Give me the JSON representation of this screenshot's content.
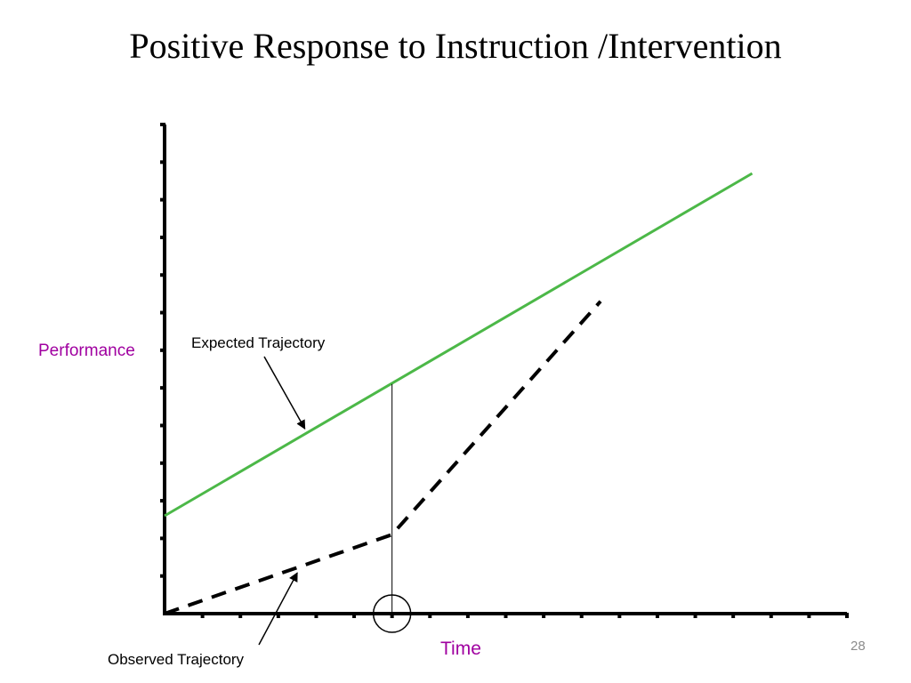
{
  "slide": {
    "title": "Positive Response to Instruction /Intervention",
    "page_number": "28"
  },
  "chart_data": {
    "type": "line",
    "ylabel": "Performance",
    "xlabel": "Time",
    "xlim": [
      0,
      18
    ],
    "ylim": [
      0,
      13
    ],
    "grid": false,
    "series": [
      {
        "name": "Expected Trajectory",
        "color": "#4cb848",
        "dash": "solid",
        "points": [
          [
            0,
            2.6
          ],
          [
            15.5,
            11.7
          ]
        ]
      },
      {
        "name": "Observed Trajectory",
        "color": "#000000",
        "dash": "dashed",
        "points": [
          [
            0,
            0
          ],
          [
            6,
            2.1
          ],
          [
            11.5,
            8.3
          ]
        ]
      }
    ],
    "reference_line": {
      "x": 6,
      "y_from": 2.1,
      "y_to": 6.1
    },
    "highlight_circle_x": 6,
    "annotations": [
      {
        "text": "Expected Trajectory",
        "points_to_series": "Expected Trajectory",
        "target_x": 3.7
      },
      {
        "text": "Observed Trajectory",
        "points_to_series": "Observed Trajectory",
        "target_x": 3.5
      }
    ]
  }
}
